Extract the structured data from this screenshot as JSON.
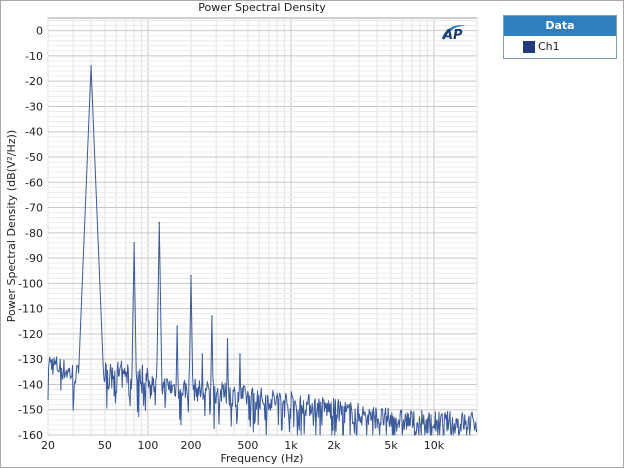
{
  "chart_data": {
    "type": "line",
    "title": "Power Spectral Density",
    "xlabel": "Frequency (Hz)",
    "ylabel": "Power Spectral Density (dB(V²/Hz))",
    "xscale": "log",
    "xlim": [
      20,
      20000
    ],
    "ylim": [
      -160,
      5
    ],
    "grid": true,
    "legend": {
      "title": "Data",
      "placement": "outside-top-right"
    },
    "x_ticks": [
      {
        "value": 20,
        "label": "20"
      },
      {
        "value": 50,
        "label": "50"
      },
      {
        "value": 100,
        "label": "100"
      },
      {
        "value": 200,
        "label": "200"
      },
      {
        "value": 500,
        "label": "500"
      },
      {
        "value": 1000,
        "label": "1k"
      },
      {
        "value": 2000,
        "label": "2k"
      },
      {
        "value": 5000,
        "label": "5k"
      },
      {
        "value": 10000,
        "label": "10k"
      }
    ],
    "y_ticks": [
      0,
      -10,
      -20,
      -30,
      -40,
      -50,
      -60,
      -70,
      -80,
      -90,
      -100,
      -110,
      -120,
      -130,
      -140,
      -150,
      -160
    ],
    "series": [
      {
        "name": "Ch1",
        "color": "#3a5a9a",
        "harmonic_peaks": [
          {
            "x": 40,
            "y": -14
          },
          {
            "x": 80,
            "y": -84
          },
          {
            "x": 120,
            "y": -76
          },
          {
            "x": 160,
            "y": -117
          },
          {
            "x": 200,
            "y": -97
          },
          {
            "x": 240,
            "y": -128
          },
          {
            "x": 280,
            "y": -113
          },
          {
            "x": 360,
            "y": -122
          },
          {
            "x": 440,
            "y": -128
          }
        ],
        "noise_floor": [
          {
            "x": 20,
            "y": -131
          },
          {
            "x": 30,
            "y": -136
          },
          {
            "x": 50,
            "y": -138
          },
          {
            "x": 100,
            "y": -140
          },
          {
            "x": 200,
            "y": -142
          },
          {
            "x": 500,
            "y": -145
          },
          {
            "x": 1000,
            "y": -147
          },
          {
            "x": 2000,
            "y": -150
          },
          {
            "x": 5000,
            "y": -154
          },
          {
            "x": 10000,
            "y": -155
          },
          {
            "x": 20000,
            "y": -155
          }
        ]
      }
    ]
  },
  "logo": {
    "text": "AP"
  }
}
